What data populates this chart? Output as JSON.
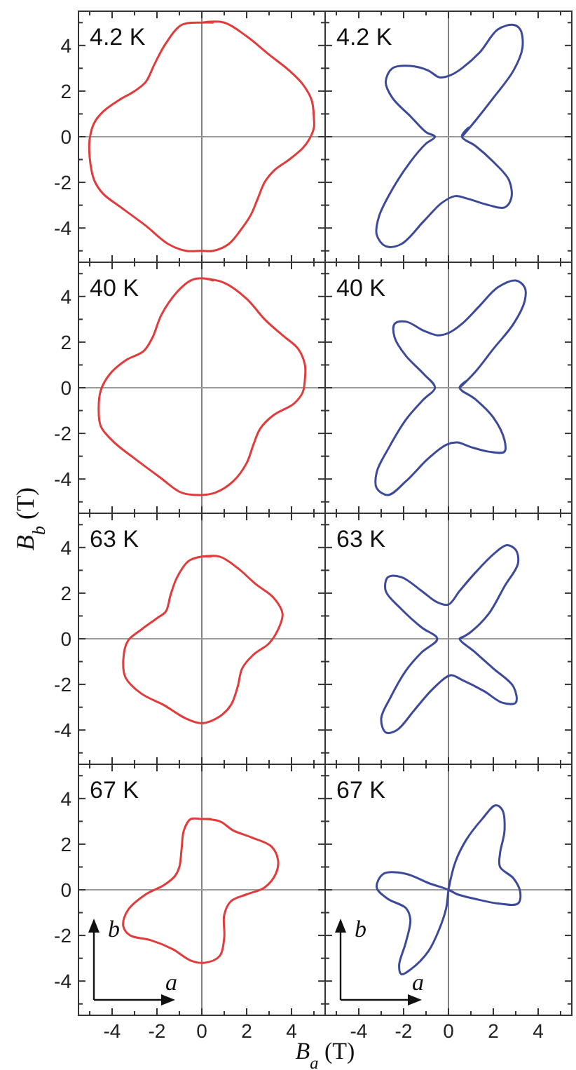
{
  "chart_data": [
    {
      "type": "line",
      "title": "4.2 K",
      "xlim": [
        -5.5,
        5.5
      ],
      "ylim": [
        -5.5,
        5.5
      ],
      "tick_labels": "y",
      "xticks": [
        {
          "value": -5,
          "label": null
        },
        -4,
        {
          "value": -3,
          "label": null
        },
        -2,
        {
          "value": -1,
          "label": null
        },
        0,
        {
          "value": 1,
          "label": null
        },
        2,
        {
          "value": 3,
          "label": null
        },
        4,
        {
          "value": 5,
          "label": null
        }
      ],
      "yticks": [
        {
          "value": -5,
          "label": null
        },
        -4,
        {
          "value": -3,
          "label": null
        },
        -2,
        {
          "value": -1,
          "label": null
        },
        0,
        {
          "value": 1,
          "label": null
        },
        2,
        {
          "value": 3,
          "label": null
        },
        4,
        {
          "value": 5,
          "label": null
        }
      ],
      "ref_lines": [
        {
          "axis": "x",
          "value": 0,
          "color": "#808080"
        },
        {
          "axis": "y",
          "value": 0,
          "color": "#9a9a9a"
        }
      ],
      "series": [
        {
          "color": "#e23b3b",
          "x": [
            0,
            1.0,
            2.0,
            3.0,
            3.9,
            4.5,
            4.9,
            5.0,
            5.0,
            4.8,
            4.5,
            3.9,
            3.2,
            2.8,
            2.5,
            2.2,
            1.8,
            1.2,
            0.5,
            0,
            -0.7,
            -1.5,
            -2.5,
            -3.6,
            -4.4,
            -4.8,
            -5.0,
            -5.0,
            -4.8,
            -4.4,
            -3.7,
            -3.0,
            -2.5,
            -2.1,
            -1.6,
            -0.9,
            0,
            0.5
          ],
          "values": [
            5.0,
            5.0,
            4.4,
            3.6,
            2.9,
            2.3,
            1.6,
            0.8,
            0.4,
            -0.1,
            -0.5,
            -1.0,
            -1.5,
            -2.0,
            -2.7,
            -3.4,
            -4.0,
            -4.7,
            -5.0,
            -5.0,
            -5.0,
            -4.7,
            -3.9,
            -3.1,
            -2.5,
            -1.9,
            -0.9,
            -0.1,
            0.6,
            1.1,
            1.6,
            2.0,
            2.4,
            3.2,
            4.1,
            4.9,
            5.0,
            5.0
          ]
        }
      ]
    },
    {
      "type": "line",
      "title": "4.2 K",
      "xlim": [
        -5.5,
        5.5
      ],
      "ylim": [
        -5.5,
        5.5
      ],
      "tick_labels": false,
      "xticks": [
        {
          "value": -5,
          "label": null
        },
        -4,
        {
          "value": -3,
          "label": null
        },
        -2,
        {
          "value": -1,
          "label": null
        },
        0,
        {
          "value": 1,
          "label": null
        },
        2,
        {
          "value": 3,
          "label": null
        },
        4,
        {
          "value": 5,
          "label": null
        }
      ],
      "yticks": [
        {
          "value": -5,
          "label": null
        },
        -4,
        {
          "value": -3,
          "label": null
        },
        -2,
        {
          "value": -1,
          "label": null
        },
        0,
        {
          "value": 1,
          "label": null
        },
        2,
        {
          "value": 3,
          "label": null
        },
        4,
        {
          "value": 5,
          "label": null
        }
      ],
      "ref_lines": [
        {
          "axis": "x",
          "value": 0,
          "color": "#808080"
        },
        {
          "axis": "y",
          "value": 0,
          "color": "#9a9a9a"
        }
      ],
      "series": [
        {
          "color": "#3c4a99",
          "x": [
            0.6,
            1.2,
            2.0,
            2.9,
            3.3,
            3.2,
            2.9,
            2.2,
            1.4,
            0.6,
            0.1,
            -0.4,
            -0.9,
            -1.7,
            -2.5,
            -2.8,
            -2.5,
            -1.7,
            -1.0,
            -0.6,
            -1.0,
            -1.7,
            -2.5,
            -3.1,
            -3.2,
            -2.8,
            -2.1,
            -1.1,
            -0.3,
            0.3,
            0.8,
            1.8,
            2.5,
            2.8,
            2.7,
            2.0,
            1.2,
            0.6,
            0.9
          ],
          "values": [
            0,
            0.7,
            1.7,
            2.9,
            3.9,
            4.7,
            4.9,
            4.7,
            3.7,
            3.0,
            2.7,
            2.6,
            2.9,
            3.1,
            3.0,
            2.4,
            1.7,
            0.9,
            0.2,
            0,
            -0.3,
            -1.1,
            -2.3,
            -3.5,
            -4.3,
            -4.8,
            -4.7,
            -3.7,
            -2.9,
            -2.6,
            -2.7,
            -3.0,
            -3.1,
            -2.7,
            -1.9,
            -1.1,
            -0.4,
            0,
            0.4
          ]
        }
      ]
    },
    {
      "type": "line",
      "title": "40 K",
      "xlim": [
        -5.5,
        5.5
      ],
      "ylim": [
        -5.5,
        5.5
      ],
      "tick_labels": "y",
      "xticks": [
        {
          "value": -5,
          "label": null
        },
        -4,
        {
          "value": -3,
          "label": null
        },
        -2,
        {
          "value": -1,
          "label": null
        },
        0,
        {
          "value": 1,
          "label": null
        },
        2,
        {
          "value": 3,
          "label": null
        },
        4,
        {
          "value": 5,
          "label": null
        }
      ],
      "yticks": [
        {
          "value": -5,
          "label": null
        },
        -4,
        {
          "value": -3,
          "label": null
        },
        -2,
        {
          "value": -1,
          "label": null
        },
        0,
        {
          "value": 1,
          "label": null
        },
        2,
        {
          "value": 3,
          "label": null
        },
        4,
        {
          "value": 5,
          "label": null
        }
      ],
      "ref_lines": [
        {
          "axis": "x",
          "value": 0,
          "color": "#808080"
        },
        {
          "axis": "y",
          "value": 0,
          "color": "#9a9a9a"
        }
      ],
      "series": [
        {
          "color": "#e23b3b",
          "x": [
            0,
            1.0,
            2.0,
            2.8,
            3.6,
            4.3,
            4.6,
            4.6,
            4.5,
            4.1,
            3.2,
            2.6,
            2.3,
            2.0,
            1.4,
            0.6,
            0,
            -0.9,
            -1.9,
            -3.0,
            -3.9,
            -4.5,
            -4.6,
            -4.5,
            -4.1,
            -3.4,
            -2.6,
            -2.2,
            -1.8,
            -1.1,
            -0.5,
            0,
            0.5
          ],
          "values": [
            4.8,
            4.6,
            3.9,
            3.0,
            2.3,
            1.7,
            1.0,
            0.4,
            -0.2,
            -0.7,
            -1.2,
            -1.8,
            -2.5,
            -3.3,
            -4.1,
            -4.6,
            -4.7,
            -4.6,
            -3.9,
            -3.1,
            -2.4,
            -1.7,
            -0.9,
            -0.1,
            0.6,
            1.2,
            1.6,
            2.2,
            3.2,
            4.2,
            4.7,
            4.8,
            4.7
          ]
        }
      ]
    },
    {
      "type": "line",
      "title": "40 K",
      "xlim": [
        -5.5,
        5.5
      ],
      "ylim": [
        -5.5,
        5.5
      ],
      "tick_labels": false,
      "xticks": [
        {
          "value": -5,
          "label": null
        },
        -4,
        {
          "value": -3,
          "label": null
        },
        -2,
        {
          "value": -1,
          "label": null
        },
        0,
        {
          "value": 1,
          "label": null
        },
        2,
        {
          "value": 3,
          "label": null
        },
        4,
        {
          "value": 5,
          "label": null
        }
      ],
      "yticks": [
        {
          "value": -5,
          "label": null
        },
        -4,
        {
          "value": -3,
          "label": null
        },
        -2,
        {
          "value": -1,
          "label": null
        },
        0,
        {
          "value": 1,
          "label": null
        },
        2,
        {
          "value": 3,
          "label": null
        },
        4,
        {
          "value": 5,
          "label": null
        }
      ],
      "ref_lines": [
        {
          "axis": "x",
          "value": 0,
          "color": "#808080"
        },
        {
          "axis": "y",
          "value": 0,
          "color": "#9a9a9a"
        }
      ],
      "series": [
        {
          "color": "#3c4a99",
          "x": [
            0.5,
            1.2,
            2.0,
            2.9,
            3.4,
            3.4,
            3.0,
            2.2,
            1.4,
            0.6,
            0,
            -0.5,
            -1.1,
            -1.9,
            -2.4,
            -2.4,
            -1.9,
            -1.1,
            -0.6,
            -1.1,
            -1.9,
            -2.7,
            -3.2,
            -3.2,
            -2.7,
            -1.9,
            -0.9,
            -0.1,
            0.4,
            1.0,
            1.8,
            2.5,
            2.5,
            2.0,
            1.2,
            0.5,
            0.8
          ],
          "values": [
            0,
            0.7,
            1.7,
            2.8,
            3.8,
            4.4,
            4.7,
            4.4,
            3.6,
            2.8,
            2.4,
            2.3,
            2.5,
            2.9,
            2.8,
            2.2,
            1.4,
            0.6,
            0,
            -0.5,
            -1.4,
            -2.7,
            -3.7,
            -4.4,
            -4.7,
            -4.1,
            -3.1,
            -2.5,
            -2.4,
            -2.6,
            -2.8,
            -2.8,
            -2.3,
            -1.3,
            -0.5,
            0,
            0.3
          ]
        }
      ]
    },
    {
      "type": "line",
      "title": "63 K",
      "ylabel": "B$_{b}$ (T)",
      "xlim": [
        -5.5,
        5.5
      ],
      "ylim": [
        -5.5,
        5.5
      ],
      "tick_labels": "y",
      "xticks": [
        {
          "value": -5,
          "label": null
        },
        -4,
        {
          "value": -3,
          "label": null
        },
        -2,
        {
          "value": -1,
          "label": null
        },
        0,
        {
          "value": 1,
          "label": null
        },
        2,
        {
          "value": 3,
          "label": null
        },
        4,
        {
          "value": 5,
          "label": null
        }
      ],
      "yticks": [
        {
          "value": -5,
          "label": null
        },
        -4,
        {
          "value": -3,
          "label": null
        },
        -2,
        {
          "value": -1,
          "label": null
        },
        0,
        {
          "value": 1,
          "label": null
        },
        2,
        {
          "value": 3,
          "label": null
        },
        4,
        {
          "value": 5,
          "label": null
        }
      ],
      "ref_lines": [
        {
          "axis": "x",
          "value": 0,
          "color": "#808080"
        },
        {
          "axis": "y",
          "value": 0,
          "color": "#9a9a9a"
        }
      ],
      "series": [
        {
          "color": "#e23b3b",
          "x": [
            0,
            0.8,
            1.6,
            2.4,
            3.2,
            3.6,
            3.4,
            3.0,
            2.3,
            1.8,
            1.6,
            1.3,
            0.8,
            0,
            -0.7,
            -1.7,
            -2.7,
            -3.4,
            -3.5,
            -3.3,
            -2.7,
            -2.0,
            -1.6,
            -1.4,
            -1.1,
            -0.6,
            0,
            0.4
          ],
          "values": [
            3.6,
            3.6,
            3.1,
            2.4,
            1.8,
            1.1,
            0.4,
            -0.2,
            -0.7,
            -1.3,
            -2.1,
            -2.9,
            -3.4,
            -3.7,
            -3.5,
            -2.9,
            -2.4,
            -1.7,
            -0.9,
            -0.1,
            0.4,
            0.9,
            1.2,
            1.9,
            2.7,
            3.4,
            3.6,
            3.6
          ]
        }
      ]
    },
    {
      "type": "line",
      "title": "63 K",
      "xlim": [
        -5.5,
        5.5
      ],
      "ylim": [
        -5.5,
        5.5
      ],
      "tick_labels": false,
      "xticks": [
        {
          "value": -5,
          "label": null
        },
        -4,
        {
          "value": -3,
          "label": null
        },
        -2,
        {
          "value": -1,
          "label": null
        },
        0,
        {
          "value": 1,
          "label": null
        },
        2,
        {
          "value": 3,
          "label": null
        },
        4,
        {
          "value": 5,
          "label": null
        }
      ],
      "yticks": [
        {
          "value": -5,
          "label": null
        },
        -4,
        {
          "value": -3,
          "label": null
        },
        -2,
        {
          "value": -1,
          "label": null
        },
        0,
        {
          "value": 1,
          "label": null
        },
        2,
        {
          "value": 3,
          "label": null
        },
        4,
        {
          "value": 5,
          "label": null
        }
      ],
      "ref_lines": [
        {
          "axis": "x",
          "value": 0,
          "color": "#808080"
        },
        {
          "axis": "y",
          "value": 0,
          "color": "#9a9a9a"
        }
      ],
      "series": [
        {
          "color": "#3c4a99",
          "x": [
            0.5,
            1.0,
            1.8,
            2.5,
            3.1,
            3.0,
            2.6,
            2.0,
            1.2,
            0.5,
            0,
            -0.5,
            -1.2,
            -2.1,
            -2.7,
            -2.8,
            -2.1,
            -1.2,
            -0.5,
            -1.2,
            -1.9,
            -2.6,
            -3.0,
            -2.8,
            -2.3,
            -1.5,
            -0.7,
            0.1,
            0.6,
            1.6,
            2.4,
            3.0,
            2.9,
            2.0,
            1.2,
            0.5,
            0.7
          ],
          "values": [
            0,
            0.3,
            1.1,
            2.3,
            3.3,
            3.9,
            4.1,
            3.7,
            2.9,
            2.1,
            1.5,
            1.6,
            2.1,
            2.7,
            2.7,
            2.1,
            1.3,
            0.5,
            0,
            -0.6,
            -1.4,
            -2.6,
            -3.5,
            -4.1,
            -4.0,
            -3.1,
            -2.2,
            -1.6,
            -1.8,
            -2.3,
            -2.8,
            -2.8,
            -2.1,
            -1.3,
            -0.6,
            0,
            0.1
          ]
        }
      ]
    },
    {
      "type": "line",
      "title": "67 K",
      "xlabel": "B$_{a}$ (T)",
      "annotations": [
        "b",
        "a"
      ],
      "xlim": [
        -5.5,
        5.5
      ],
      "ylim": [
        -5.5,
        5.5
      ],
      "xticks": [
        {
          "value": -5,
          "label": null
        },
        -4,
        {
          "value": -3,
          "label": null
        },
        -2,
        {
          "value": -1,
          "label": null
        },
        0,
        {
          "value": 1,
          "label": null
        },
        2,
        {
          "value": 3,
          "label": null
        },
        4,
        {
          "value": 5,
          "label": null
        }
      ],
      "yticks": [
        {
          "value": -5,
          "label": null
        },
        -4,
        {
          "value": -3,
          "label": null
        },
        -2,
        {
          "value": -1,
          "label": null
        },
        0,
        {
          "value": 1,
          "label": null
        },
        2,
        {
          "value": 3,
          "label": null
        },
        4,
        {
          "value": 5,
          "label": null
        }
      ],
      "ref_lines": [
        {
          "axis": "x",
          "value": 0,
          "color": "#808080"
        },
        {
          "axis": "y",
          "value": 0,
          "color": "#9a9a9a"
        }
      ],
      "series": [
        {
          "color": "#e23b3b",
          "x": [
            0,
            0.8,
            1.4,
            2.2,
            3.1,
            3.4,
            3.3,
            2.8,
            2.0,
            1.3,
            1.0,
            1.0,
            0.8,
            0.1,
            -0.5,
            -1.3,
            -2.3,
            -3.2,
            -3.5,
            -3.3,
            -2.5,
            -1.7,
            -1.2,
            -1.0,
            -0.9,
            -0.8,
            -0.5,
            0,
            0.4
          ],
          "values": [
            3.1,
            3.0,
            2.6,
            2.3,
            1.9,
            1.3,
            0.7,
            0.1,
            -0.2,
            -0.5,
            -1.1,
            -2.1,
            -2.9,
            -3.2,
            -3.1,
            -2.6,
            -2.2,
            -2.0,
            -1.6,
            -0.9,
            -0.2,
            0.2,
            0.6,
            1.0,
            1.8,
            2.6,
            3.1,
            3.1,
            3.1
          ]
        }
      ]
    },
    {
      "type": "line",
      "title": "67 K",
      "annotations": [
        "b",
        "a"
      ],
      "xlim": [
        -5.5,
        5.5
      ],
      "ylim": [
        -5.5,
        5.5
      ],
      "tick_labels": "x",
      "xticks": [
        {
          "value": -5,
          "label": null
        },
        -4,
        {
          "value": -3,
          "label": null
        },
        -2,
        {
          "value": -1,
          "label": null
        },
        0,
        {
          "value": 1,
          "label": null
        },
        2,
        {
          "value": 3,
          "label": null
        },
        4,
        {
          "value": 5,
          "label": null
        }
      ],
      "yticks": [
        {
          "value": -5,
          "label": null
        },
        -4,
        {
          "value": -3,
          "label": null
        },
        -2,
        {
          "value": -1,
          "label": null
        },
        0,
        {
          "value": 1,
          "label": null
        },
        2,
        {
          "value": 3,
          "label": null
        },
        4,
        {
          "value": 5,
          "label": null
        }
      ],
      "ref_lines": [
        {
          "axis": "x",
          "value": 0,
          "color": "#808080"
        },
        {
          "axis": "y",
          "value": 0,
          "color": "#9a9a9a"
        }
      ],
      "series": [
        {
          "color": "#3c4a99",
          "x": [
            0,
            0.3,
            0.8,
            1.5,
            2.1,
            2.4,
            2.5,
            2.3,
            2.3,
            2.9,
            3.2,
            3.1,
            2.2,
            1.2,
            0.4,
            0,
            -0.9,
            -1.9,
            -2.9,
            -3.2,
            -2.7,
            -1.9,
            -1.7,
            -1.9,
            -2.2,
            -2.1,
            -1.7,
            -0.9,
            -0.4,
            -0.1,
            0,
            0.1
          ],
          "values": [
            0,
            1.2,
            2.2,
            3.1,
            3.7,
            3.5,
            2.6,
            1.6,
            1.0,
            0.5,
            -0.1,
            -0.6,
            -0.6,
            -0.4,
            -0.2,
            0,
            0.3,
            0.7,
            0.7,
            0.1,
            -0.4,
            -0.8,
            -1.3,
            -2.3,
            -3.3,
            -3.7,
            -3.5,
            -2.7,
            -1.7,
            -0.8,
            0,
            0.5
          ]
        }
      ]
    }
  ]
}
